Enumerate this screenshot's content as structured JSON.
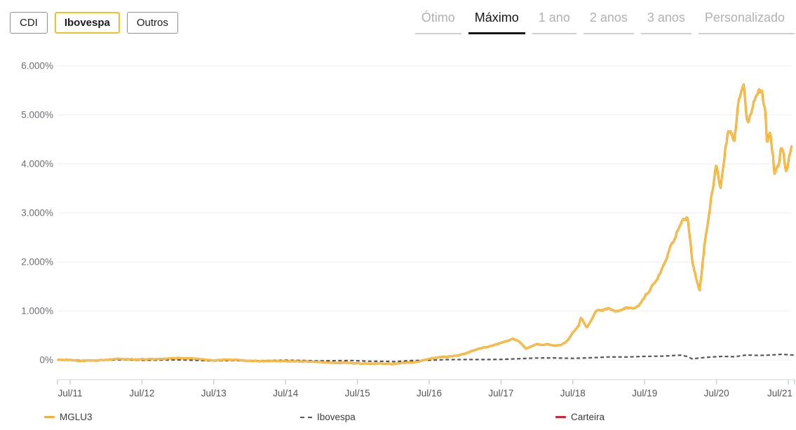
{
  "toolbar": {
    "benchmarks": [
      {
        "id": "cdi",
        "label": "CDI",
        "active": false
      },
      {
        "id": "ibovespa",
        "label": "Ibovespa",
        "active": true
      },
      {
        "id": "outros",
        "label": "Outros",
        "active": false
      }
    ],
    "periods": [
      {
        "id": "otimo",
        "label": "Ótimo",
        "active": false
      },
      {
        "id": "maximo",
        "label": "Máximo",
        "active": true
      },
      {
        "id": "1-ano",
        "label": "1 ano",
        "active": false
      },
      {
        "id": "2-anos",
        "label": "2 anos",
        "active": false
      },
      {
        "id": "3-anos",
        "label": "3 anos",
        "active": false
      },
      {
        "id": "personalizado",
        "label": "Personalizado",
        "active": false
      }
    ]
  },
  "colors": {
    "accent_yellow": "#F2C021",
    "mglu3_line_outer": "#F0A22B",
    "mglu3_line_inner": "#FFC94F",
    "ibovespa_line": "#55565E",
    "carteira_line": "#D2272E",
    "gridline": "#ECECEC",
    "axis_line": "#E1E4EE",
    "axis_tick": "#C9CFE2",
    "y_label": "#6E6E77",
    "x_label": "#54545C",
    "tab_inactive": "#B1B1B1",
    "tab_active": "#141414"
  },
  "chart_data": {
    "type": "line",
    "title": "",
    "xlabel": "",
    "ylabel": "",
    "ylim": [
      -100,
      6000
    ],
    "grid": true,
    "legend_position": "bottom",
    "y_ticks": [
      {
        "label": "6.000%",
        "value": 6000
      },
      {
        "label": "5.000%",
        "value": 5000
      },
      {
        "label": "4.000%",
        "value": 4000
      },
      {
        "label": "3.000%",
        "value": 3000
      },
      {
        "label": "2.000%",
        "value": 2000
      },
      {
        "label": "1.000%",
        "value": 1000
      },
      {
        "label": "0%",
        "value": 0
      }
    ],
    "x_ticks": [
      {
        "label": "Jul/11",
        "date": "2011-07"
      },
      {
        "label": "Jul/12",
        "date": "2012-07"
      },
      {
        "label": "Jul/13",
        "date": "2013-07"
      },
      {
        "label": "Jul/14",
        "date": "2014-07"
      },
      {
        "label": "Jul/15",
        "date": "2015-07"
      },
      {
        "label": "Jul/16",
        "date": "2016-07"
      },
      {
        "label": "Jul/17",
        "date": "2017-07"
      },
      {
        "label": "Jul/18",
        "date": "2018-07"
      },
      {
        "label": "Jul/19",
        "date": "2019-07"
      },
      {
        "label": "Jul/20",
        "date": "2020-07"
      },
      {
        "label": "Jul/21",
        "date": "2021-07"
      }
    ],
    "series": [
      {
        "id": "mglu3",
        "name": "MGLU3",
        "unit": "%",
        "style": "solid",
        "color": "#F6AE38",
        "points": [
          [
            "2011-05",
            8
          ],
          [
            "2011-07",
            -5
          ],
          [
            "2011-09",
            -18
          ],
          [
            "2011-11",
            -12
          ],
          [
            "2012-01",
            6
          ],
          [
            "2012-03",
            30
          ],
          [
            "2012-05",
            10
          ],
          [
            "2012-07",
            14
          ],
          [
            "2012-09",
            18
          ],
          [
            "2012-11",
            22
          ],
          [
            "2013-01",
            38
          ],
          [
            "2013-03",
            32
          ],
          [
            "2013-05",
            15
          ],
          [
            "2013-07",
            -12
          ],
          [
            "2013-09",
            6
          ],
          [
            "2013-11",
            2
          ],
          [
            "2014-01",
            -20
          ],
          [
            "2014-03",
            -26
          ],
          [
            "2014-05",
            -18
          ],
          [
            "2014-07",
            -26
          ],
          [
            "2014-09",
            -30
          ],
          [
            "2014-11",
            -38
          ],
          [
            "2015-01",
            -48
          ],
          [
            "2015-03",
            -60
          ],
          [
            "2015-05",
            -58
          ],
          [
            "2015-07",
            -68
          ],
          [
            "2015-09",
            -76
          ],
          [
            "2015-11",
            -74
          ],
          [
            "2016-01",
            -82
          ],
          [
            "2016-03",
            -58
          ],
          [
            "2016-05",
            -42
          ],
          [
            "2016-07",
            22
          ],
          [
            "2016-09",
            58
          ],
          [
            "2016-11",
            72
          ],
          [
            "2017-01",
            130
          ],
          [
            "2017-03",
            225
          ],
          [
            "2017-05",
            270
          ],
          [
            "2017-07",
            350
          ],
          [
            "2017-09",
            430
          ],
          [
            "2017-10-20",
            360
          ],
          [
            "2017-11-20",
            232
          ],
          [
            "2017-12",
            270
          ],
          [
            "2018-01",
            335
          ],
          [
            "2018-02",
            300
          ],
          [
            "2018-03",
            318
          ],
          [
            "2018-04",
            292
          ],
          [
            "2018-05",
            305
          ],
          [
            "2018-06",
            372
          ],
          [
            "2018-07",
            560
          ],
          [
            "2018-08",
            700
          ],
          [
            "2018-08-25",
            870
          ],
          [
            "2018-09-25",
            660
          ],
          [
            "2018-11-15",
            1010
          ],
          [
            "2018-12",
            1005
          ],
          [
            "2019-01",
            1060
          ],
          [
            "2019-02",
            985
          ],
          [
            "2019-03",
            1015
          ],
          [
            "2019-04",
            1070
          ],
          [
            "2019-05",
            1040
          ],
          [
            "2019-06",
            1110
          ],
          [
            "2019-07",
            1290
          ],
          [
            "2019-08",
            1450
          ],
          [
            "2019-09",
            1640
          ],
          [
            "2019-10",
            1900
          ],
          [
            "2019-11",
            2200
          ],
          [
            "2019-12",
            2480
          ],
          [
            "2020-01",
            2780
          ],
          [
            "2020-02-20",
            2920
          ],
          [
            "2020-03-15",
            2000
          ],
          [
            "2020-04-20",
            1390
          ],
          [
            "2020-05-15",
            2350
          ],
          [
            "2020-06-10",
            3050
          ],
          [
            "2020-07-15",
            4000
          ],
          [
            "2020-08-05",
            3500
          ],
          [
            "2020-09-15",
            4770
          ],
          [
            "2020-10-15",
            4460
          ],
          [
            "2020-11-05",
            5340
          ],
          [
            "2020-12-01",
            5690
          ],
          [
            "2020-12-15",
            5000
          ],
          [
            "2020-12-22",
            4800
          ],
          [
            "2021-01-15",
            5220
          ],
          [
            "2021-02-05",
            5430
          ],
          [
            "2021-03-05",
            5440
          ],
          [
            "2021-03-20",
            5000
          ],
          [
            "2021-03-28",
            4400
          ],
          [
            "2021-04-15",
            4600
          ],
          [
            "2021-04-28",
            4200
          ],
          [
            "2021-05-05",
            3750
          ],
          [
            "2021-05-28",
            4000
          ],
          [
            "2021-06-05",
            4300
          ],
          [
            "2021-06-18",
            4250
          ],
          [
            "2021-07-03",
            3800
          ],
          [
            "2021-07-18",
            4100
          ],
          [
            "2021-08-01",
            4330
          ]
        ]
      },
      {
        "id": "ibovespa",
        "name": "Ibovespa",
        "unit": "%",
        "style": "dashed",
        "color": "#55565E",
        "points": [
          [
            "2011-05",
            2
          ],
          [
            "2011-07",
            0
          ],
          [
            "2011-10",
            -12
          ],
          [
            "2012-01",
            -2
          ],
          [
            "2012-04",
            4
          ],
          [
            "2012-07",
            -6
          ],
          [
            "2012-10",
            -3
          ],
          [
            "2013-01",
            2
          ],
          [
            "2013-04",
            -7
          ],
          [
            "2013-07",
            -19
          ],
          [
            "2013-10",
            -10
          ],
          [
            "2014-01",
            -20
          ],
          [
            "2014-04",
            -13
          ],
          [
            "2014-07",
            -6
          ],
          [
            "2014-09",
            -8
          ],
          [
            "2014-12",
            -17
          ],
          [
            "2015-03",
            -15
          ],
          [
            "2015-06",
            -11
          ],
          [
            "2015-09",
            -25
          ],
          [
            "2015-12",
            -28
          ],
          [
            "2016-01",
            -34
          ],
          [
            "2016-04",
            -13
          ],
          [
            "2016-07",
            -5
          ],
          [
            "2016-10",
            7
          ],
          [
            "2017-01",
            8
          ],
          [
            "2017-04",
            9
          ],
          [
            "2017-07",
            11
          ],
          [
            "2017-10",
            26
          ],
          [
            "2018-01",
            40
          ],
          [
            "2018-04",
            42
          ],
          [
            "2018-07",
            33
          ],
          [
            "2018-10",
            45
          ],
          [
            "2019-01",
            61
          ],
          [
            "2019-04",
            60
          ],
          [
            "2019-07",
            73
          ],
          [
            "2019-10",
            78
          ],
          [
            "2020-01",
            98
          ],
          [
            "2020-02",
            75
          ],
          [
            "2020-03",
            22
          ],
          [
            "2020-04",
            38
          ],
          [
            "2020-06",
            60
          ],
          [
            "2020-08",
            73
          ],
          [
            "2020-10",
            65
          ],
          [
            "2020-12",
            101
          ],
          [
            "2021-02",
            93
          ],
          [
            "2021-04",
            100
          ],
          [
            "2021-06",
            115
          ],
          [
            "2021-07",
            105
          ],
          [
            "2021-08",
            100
          ]
        ]
      },
      {
        "id": "carteira",
        "name": "Carteira",
        "unit": "%",
        "style": "solid",
        "color": "#D2272E",
        "points": []
      }
    ]
  }
}
